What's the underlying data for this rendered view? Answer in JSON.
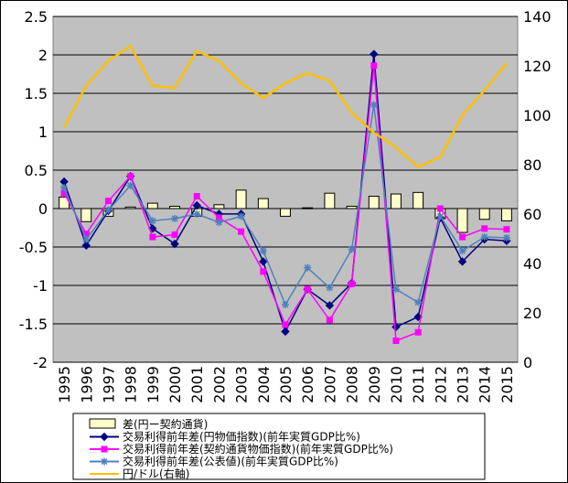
{
  "chart_data": {
    "type": "bar",
    "categories": [
      "1995",
      "1996",
      "1997",
      "1998",
      "1999",
      "2000",
      "2001",
      "2002",
      "2003",
      "2004",
      "2005",
      "2006",
      "2007",
      "2008",
      "2009",
      "2010",
      "2011",
      "2012",
      "2013",
      "2014",
      "2015"
    ],
    "left_axis": {
      "min": -2,
      "max": 2.5,
      "step": 0.5,
      "tick_labels": [
        "-2",
        "-1.5",
        "-1",
        "-0.5",
        "0",
        "0.5",
        "1",
        "1.5",
        "2",
        "2.5"
      ]
    },
    "right_axis": {
      "min": 0,
      "max": 140,
      "step": 20,
      "tick_labels": [
        "0",
        "20",
        "40",
        "60",
        "80",
        "100",
        "120",
        "140"
      ]
    },
    "grid": true,
    "plot_background": "#c0c0c0",
    "series": [
      {
        "name": "差(円ー契約通貨)",
        "kind": "bar",
        "axis": "left",
        "color": "#ffffcc",
        "values": [
          0.15,
          -0.17,
          -0.1,
          0.02,
          0.07,
          0.03,
          -0.1,
          0.05,
          0.24,
          0.13,
          -0.1,
          0.01,
          0.2,
          0.03,
          0.16,
          0.19,
          0.21,
          -0.13,
          -0.31,
          -0.14,
          -0.16
        ]
      },
      {
        "name": "交易利得前年差(円物価指数)(前年実質GDP比%)",
        "kind": "line",
        "axis": "left",
        "color": "#000080",
        "marker": "diamond",
        "values": [
          0.35,
          -0.48,
          -0.03,
          0.42,
          -0.26,
          -0.46,
          0.04,
          -0.07,
          -0.07,
          -0.69,
          -1.6,
          -1.05,
          -1.26,
          -0.97,
          2.01,
          -1.54,
          -1.41,
          -0.12,
          -0.69,
          -0.4,
          -0.42
        ]
      },
      {
        "name": "交易利得前年差(契約通貨物価指数)(前年実質GDP比%)",
        "kind": "line",
        "axis": "left",
        "color": "#ff00ff",
        "marker": "square",
        "values": [
          0.2,
          -0.33,
          0.1,
          0.42,
          -0.37,
          -0.34,
          0.16,
          -0.12,
          -0.3,
          -0.82,
          -1.51,
          -1.05,
          -1.45,
          -0.98,
          1.86,
          -1.72,
          -1.61,
          0.0,
          -0.37,
          -0.26,
          -0.27
        ]
      },
      {
        "name": "交易利得前年差(公表値)(前年実質GDP比%)",
        "kind": "line",
        "axis": "left",
        "color": "#4f81bd",
        "marker": "asterisk",
        "values": [
          0.27,
          -0.4,
          -0.02,
          0.3,
          -0.16,
          -0.13,
          -0.07,
          -0.18,
          -0.1,
          -0.55,
          -1.25,
          -0.77,
          -1.03,
          -0.53,
          1.35,
          -1.05,
          -1.22,
          -0.1,
          -0.55,
          -0.37,
          -0.38
        ]
      },
      {
        "name": "円/ドル(右軸)",
        "kind": "line",
        "axis": "right",
        "color": "#ffc000",
        "marker": "none",
        "values": [
          95,
          112,
          122,
          128,
          112,
          111,
          126,
          122,
          113,
          107,
          113,
          117,
          114,
          101,
          93,
          87,
          79,
          83,
          100,
          110,
          121
        ]
      }
    ]
  }
}
